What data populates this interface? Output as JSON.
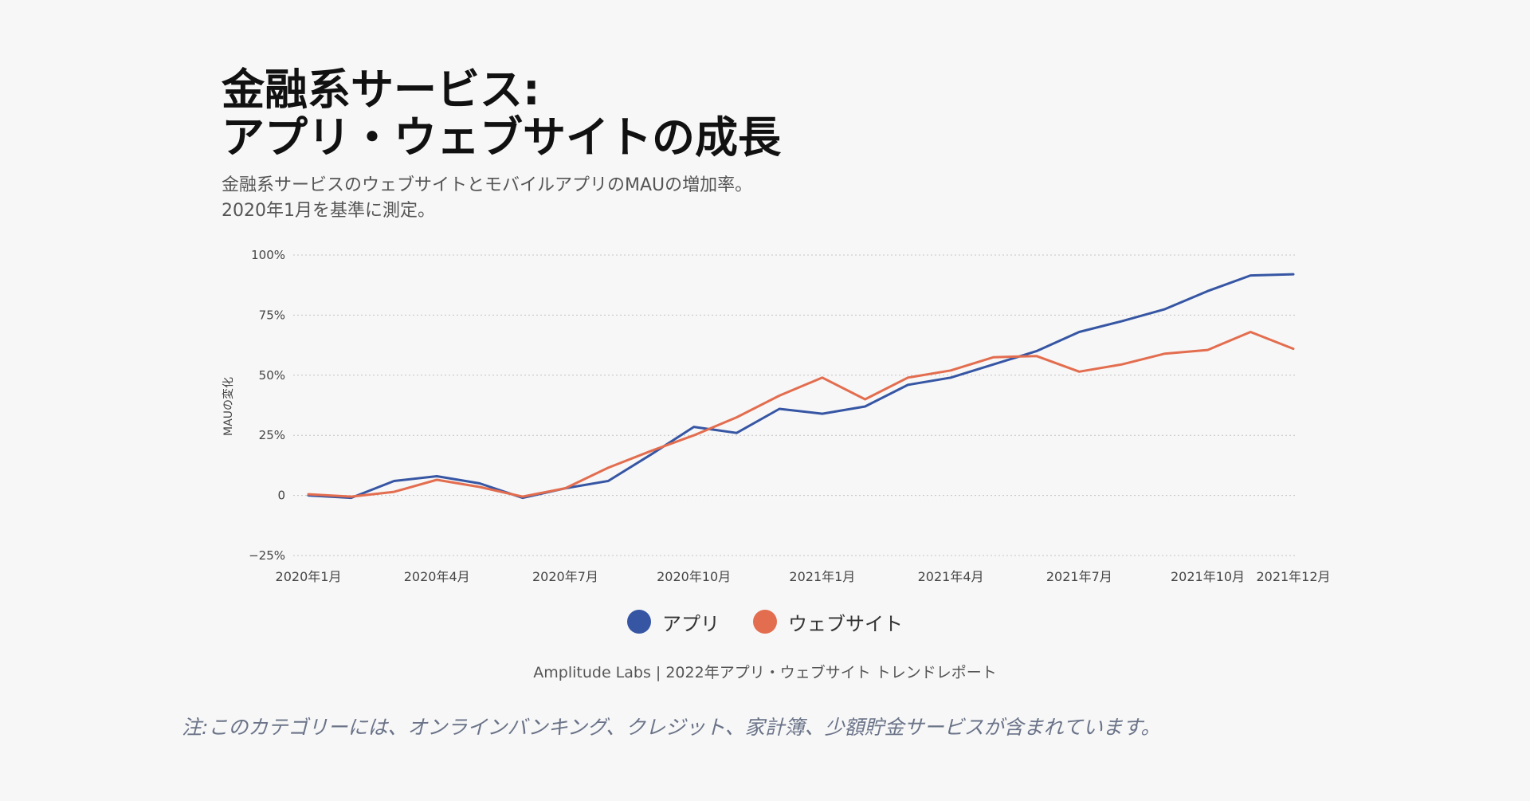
{
  "header": {
    "title_line1": "金融系サービス:",
    "title_line2": "アプリ・ウェブサイトの成長",
    "subtitle_line1": "金融系サービスのウェブサイトとモバイルアプリのMAUの増加率。",
    "subtitle_line2": "2020年1月を基準に測定。"
  },
  "chart_data": {
    "type": "line",
    "title": "金融系サービス: アプリ・ウェブサイトの成長",
    "ylabel": "MAUの変化",
    "xlabel": "",
    "ylim": [
      -25,
      100
    ],
    "y_ticks": [
      {
        "value": -25,
        "label": "−25%"
      },
      {
        "value": 0,
        "label": "0"
      },
      {
        "value": 25,
        "label": "25%"
      },
      {
        "value": 50,
        "label": "50%"
      },
      {
        "value": 75,
        "label": "75%"
      },
      {
        "value": 100,
        "label": "100%"
      }
    ],
    "x": [
      "2020-01",
      "2020-02",
      "2020-03",
      "2020-04",
      "2020-05",
      "2020-06",
      "2020-07",
      "2020-08",
      "2020-09",
      "2020-10",
      "2020-11",
      "2020-12",
      "2021-01",
      "2021-02",
      "2021-03",
      "2021-04",
      "2021-05",
      "2021-06",
      "2021-07",
      "2021-08",
      "2021-09",
      "2021-10",
      "2021-11",
      "2021-12"
    ],
    "x_ticks": [
      {
        "x": "2020-01",
        "label": "2020年1月"
      },
      {
        "x": "2020-04",
        "label": "2020年4月"
      },
      {
        "x": "2020-07",
        "label": "2020年7月"
      },
      {
        "x": "2020-10",
        "label": "2020年10月"
      },
      {
        "x": "2021-01",
        "label": "2021年1月"
      },
      {
        "x": "2021-04",
        "label": "2021年4月"
      },
      {
        "x": "2021-07",
        "label": "2021年7月"
      },
      {
        "x": "2021-10",
        "label": "2021年10月"
      },
      {
        "x": "2021-12",
        "label": "2021年12月"
      }
    ],
    "grid": true,
    "series": [
      {
        "name": "アプリ",
        "color": "#3656a4",
        "values": [
          0,
          -1,
          6,
          8,
          5,
          -1,
          3,
          6,
          17,
          28.5,
          26,
          36,
          34,
          37,
          46,
          49,
          54.5,
          60,
          68,
          72.5,
          77.5,
          85,
          91.5,
          92
        ]
      },
      {
        "name": "ウェブサイト",
        "color": "#e36d4f",
        "values": [
          0.5,
          -0.5,
          1.5,
          6.5,
          3.5,
          -0.5,
          3,
          11.5,
          18.5,
          25,
          32.5,
          41.5,
          49,
          40,
          49,
          52,
          57.5,
          58,
          51.5,
          54.5,
          59,
          60.5,
          68,
          61
        ]
      }
    ],
    "legend_position": "bottom-center"
  },
  "footer": {
    "source": "Amplitude Labs | 2022年アプリ・ウェブサイト トレンドレポート",
    "note": "注:このカテゴリーには、オンラインバンキング、クレジット、家計簿、少額貯金サービスが含まれています。"
  }
}
